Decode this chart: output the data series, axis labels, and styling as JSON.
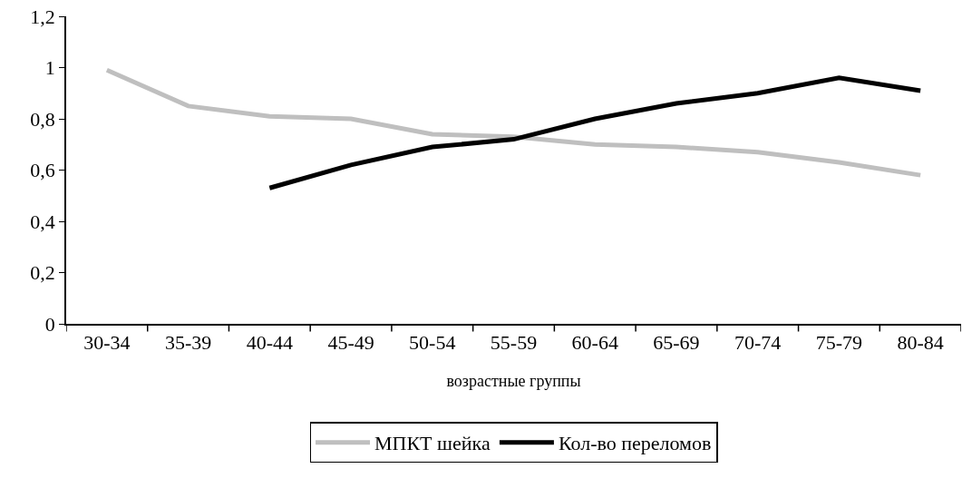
{
  "chart_data": {
    "type": "line",
    "xlabel": "возрастные группы",
    "categories": [
      "30-34",
      "35-39",
      "40-44",
      "45-49",
      "50-54",
      "55-59",
      "60-64",
      "65-69",
      "70-74",
      "75-79",
      "80-84"
    ],
    "series": [
      {
        "name": "МПКТ шейка",
        "color": "#bfbfbf",
        "values": [
          0.99,
          0.85,
          0.81,
          0.8,
          0.74,
          0.73,
          0.7,
          0.69,
          0.67,
          0.63,
          0.58
        ]
      },
      {
        "name": "Кол-во переломов",
        "color": "#000000",
        "values": [
          null,
          null,
          0.53,
          0.62,
          0.69,
          0.72,
          0.8,
          0.86,
          0.9,
          0.96,
          0.91
        ]
      }
    ],
    "ylim": [
      0,
      1.2
    ],
    "yticks": [
      {
        "value": 0,
        "label": "0"
      },
      {
        "value": 0.2,
        "label": "0,2"
      },
      {
        "value": 0.4,
        "label": "0,4"
      },
      {
        "value": 0.6,
        "label": "0,6"
      },
      {
        "value": 0.8,
        "label": "0,8"
      },
      {
        "value": 1,
        "label": "1"
      },
      {
        "value": 1.2,
        "label": "1,2"
      }
    ],
    "grid": false,
    "legend": "bottom",
    "marker": "none",
    "line_style": "solid"
  }
}
